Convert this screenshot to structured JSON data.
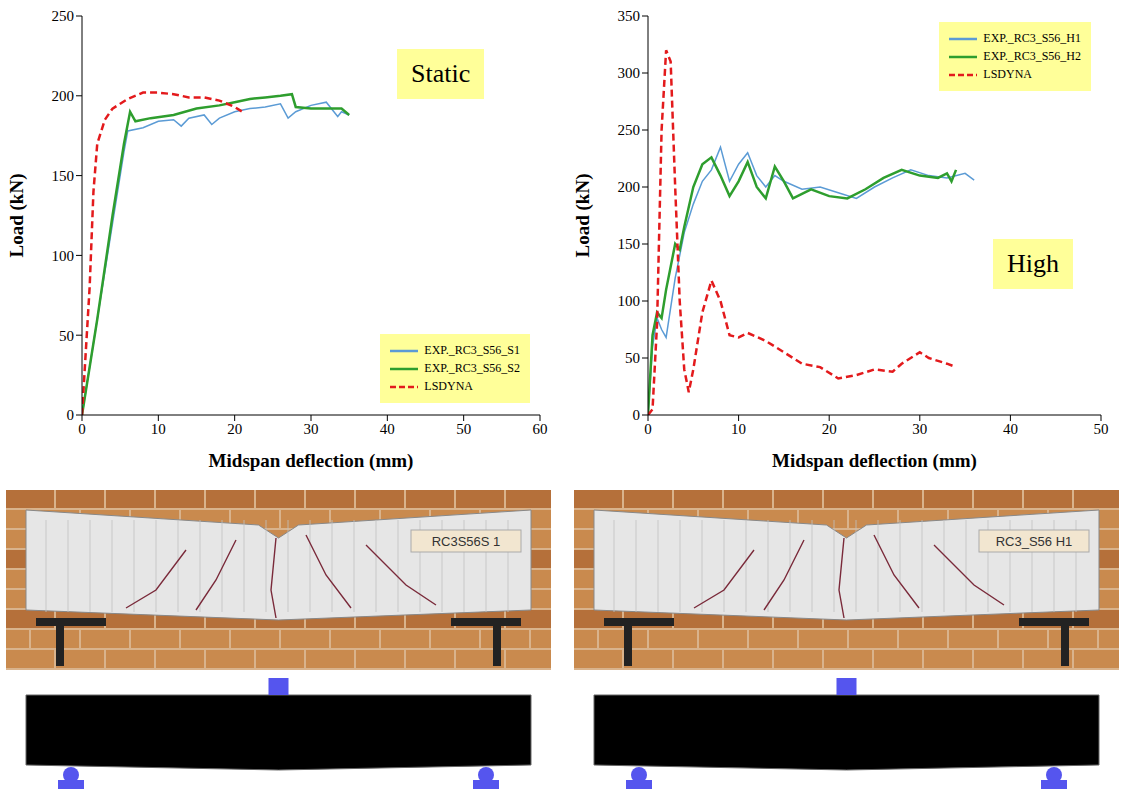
{
  "chart_data": [
    {
      "type": "line",
      "x_label": "Midspan deflection (mm)",
      "y_label": "Load (kN)",
      "annotation": "Static",
      "xlim": [
        0,
        60
      ],
      "xticks": [
        0,
        10,
        20,
        30,
        40,
        50,
        60
      ],
      "ylim": [
        0,
        250
      ],
      "yticks": [
        0,
        50,
        100,
        150,
        200,
        250
      ],
      "legend": "lower right",
      "series": [
        {
          "name": "EXP._RC3_S56_S1",
          "color": "#5b9bd5",
          "line_style": "solid",
          "x": [
            0,
            2,
            4,
            5.5,
            6,
            8,
            10,
            12,
            13,
            14,
            16,
            17,
            18,
            20,
            22,
            24,
            26,
            27,
            28,
            30,
            32,
            33,
            33.5,
            34,
            35
          ],
          "values": [
            0,
            60,
            120,
            165,
            178,
            180,
            184,
            185,
            181,
            186,
            188,
            182,
            186,
            190,
            192,
            193,
            195,
            186,
            190,
            194,
            196,
            190,
            187,
            190,
            188
          ]
        },
        {
          "name": "EXP._RC3_S56_S2",
          "color": "#2e9e2e",
          "line_style": "solid",
          "x": [
            0,
            2,
            4,
            5.5,
            6.3,
            7,
            9,
            12,
            15,
            18,
            20,
            22,
            24,
            26,
            27.5,
            28,
            30,
            32,
            34,
            35
          ],
          "values": [
            0,
            60,
            125,
            170,
            190,
            184,
            186,
            188,
            192,
            194,
            196,
            198,
            199,
            200,
            201,
            193,
            192,
            192,
            192,
            188
          ]
        },
        {
          "name": "LSDYNA",
          "color": "#e31a1c",
          "line_style": "dashed",
          "x": [
            0,
            1,
            1.5,
            2,
            3,
            4,
            6,
            8,
            10,
            12,
            14,
            16,
            18,
            20,
            21
          ],
          "values": [
            0,
            80,
            140,
            170,
            185,
            192,
            198,
            202,
            202,
            201,
            199,
            199,
            197,
            193,
            190
          ]
        }
      ]
    },
    {
      "type": "line",
      "x_label": "Midspan deflection (mm)",
      "y_label": "Load (kN)",
      "annotation": "High",
      "xlim": [
        0,
        50
      ],
      "xticks": [
        0,
        10,
        20,
        30,
        40,
        50
      ],
      "ylim": [
        0,
        350
      ],
      "yticks": [
        0,
        50,
        100,
        150,
        200,
        250,
        300,
        350
      ],
      "legend": "upper right",
      "series": [
        {
          "name": "EXP._RC3_S56_H1",
          "color": "#5b9bd5",
          "line_style": "solid",
          "x": [
            0,
            0.5,
            1,
            1.5,
            2,
            3,
            4,
            5,
            6,
            7,
            8,
            9,
            10,
            11,
            12,
            13,
            14,
            15,
            17,
            19,
            21,
            23,
            25,
            27,
            29,
            31,
            33,
            35,
            36
          ],
          "values": [
            0,
            60,
            85,
            75,
            68,
            120,
            160,
            185,
            205,
            215,
            235,
            205,
            220,
            230,
            210,
            200,
            210,
            205,
            198,
            200,
            195,
            190,
            200,
            208,
            215,
            210,
            208,
            212,
            206
          ]
        },
        {
          "name": "EXP._RC3_S56_H2",
          "color": "#2e9e2e",
          "line_style": "solid",
          "x": [
            0,
            0.5,
            1,
            1.5,
            2,
            3,
            3.5,
            4,
            5,
            6,
            7,
            8,
            9,
            10,
            11,
            12,
            13,
            14,
            15,
            16,
            18,
            20,
            22,
            24,
            26,
            28,
            30,
            32,
            33,
            33.5,
            34
          ],
          "values": [
            0,
            70,
            90,
            85,
            110,
            150,
            145,
            165,
            200,
            220,
            226,
            210,
            192,
            205,
            222,
            200,
            190,
            218,
            205,
            190,
            198,
            192,
            190,
            198,
            208,
            215,
            210,
            208,
            212,
            205,
            215
          ]
        },
        {
          "name": "LSDYNA",
          "color": "#e31a1c",
          "line_style": "dashed",
          "x": [
            0,
            0.5,
            1,
            1.5,
            2,
            2.5,
            3,
            3.5,
            4,
            4.5,
            5,
            6,
            7,
            8,
            9,
            10,
            11,
            13,
            15,
            17,
            19,
            21,
            23,
            25,
            27,
            28,
            30,
            31,
            33,
            34
          ],
          "values": [
            0,
            5,
            80,
            250,
            320,
            310,
            200,
            100,
            40,
            20,
            40,
            90,
            118,
            100,
            70,
            68,
            72,
            65,
            55,
            45,
            42,
            32,
            35,
            40,
            38,
            45,
            55,
            50,
            45,
            42
          ]
        }
      ]
    }
  ],
  "photos": [
    {
      "label": "RC3S56S 1"
    },
    {
      "label": "RC3_S56 H1"
    }
  ]
}
